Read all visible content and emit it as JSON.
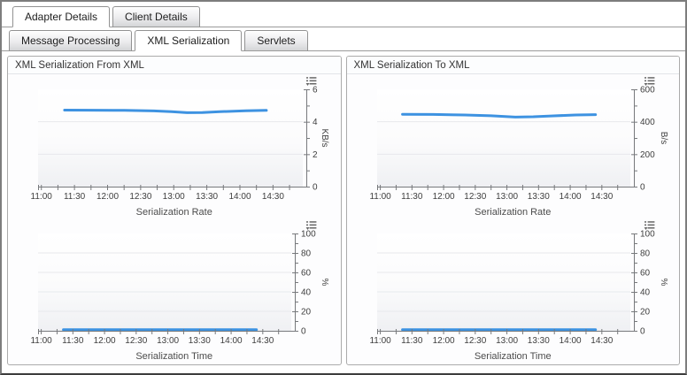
{
  "colors": {
    "series": "#3d92e1",
    "axis": "#77797c",
    "grid": "#e7e9ec"
  },
  "tabs": {
    "primary": [
      {
        "label": "Adapter Details"
      },
      {
        "label": "Client Details"
      }
    ],
    "secondary": [
      {
        "label": "Message Processing"
      },
      {
        "label": "XML Serialization"
      },
      {
        "label": "Servlets"
      }
    ]
  },
  "panels": {
    "left": {
      "title": "XML Serialization From XML"
    },
    "right": {
      "title": "XML Serialization To XML"
    }
  },
  "charts": {
    "from_rate": {
      "type": "line",
      "title": "Serialization Rate",
      "unit": "KB/s",
      "ymax": 6,
      "y_majors": [
        0,
        2,
        4,
        6
      ],
      "x": {
        "start": 657,
        "end": 897,
        "tick_start": 660,
        "tick_step": 15,
        "tick_end": 885,
        "label_start": 660,
        "label_step": 30,
        "labels": [
          "11:00",
          "11:30",
          "12:00",
          "12:30",
          "13:00",
          "13:30",
          "14:00",
          "14:30"
        ]
      },
      "points": [
        [
          681,
          4.72
        ],
        [
          705,
          4.71
        ],
        [
          735,
          4.7
        ],
        [
          762,
          4.67
        ],
        [
          778,
          4.62
        ],
        [
          792,
          4.56
        ],
        [
          806,
          4.57
        ],
        [
          822,
          4.62
        ],
        [
          845,
          4.68
        ],
        [
          864,
          4.7
        ]
      ]
    },
    "from_time": {
      "type": "line",
      "title": "Serialization Time",
      "unit": "%",
      "ymax": 100,
      "y_majors": [
        0,
        20,
        40,
        60,
        80,
        100
      ],
      "x": {
        "start": 657,
        "end": 897,
        "tick_start": 660,
        "tick_step": 15,
        "tick_end": 885,
        "label_start": 660,
        "label_step": 30,
        "labels": [
          "11:00",
          "11:30",
          "12:00",
          "12:30",
          "13:00",
          "13:30",
          "14:00",
          "14:30"
        ]
      },
      "points": [
        [
          681,
          1.2
        ],
        [
          720,
          1.2
        ],
        [
          760,
          1.2
        ],
        [
          800,
          1.2
        ],
        [
          840,
          1.2
        ],
        [
          864,
          1.2
        ]
      ]
    },
    "to_rate": {
      "type": "line",
      "title": "Serialization Rate",
      "unit": "B/s",
      "ymax": 600,
      "y_majors": [
        0,
        200,
        400,
        600
      ],
      "x": {
        "start": 657,
        "end": 897,
        "tick_start": 660,
        "tick_step": 15,
        "tick_end": 885,
        "label_start": 660,
        "label_step": 30,
        "labels": [
          "11:00",
          "11:30",
          "12:00",
          "12:30",
          "13:00",
          "13:30",
          "14:00",
          "14:30"
        ]
      },
      "points": [
        [
          681,
          446
        ],
        [
          710,
          445
        ],
        [
          740,
          442
        ],
        [
          765,
          437
        ],
        [
          788,
          429
        ],
        [
          805,
          431
        ],
        [
          822,
          436
        ],
        [
          845,
          442
        ],
        [
          864,
          444
        ]
      ]
    },
    "to_time": {
      "type": "line",
      "title": "Serialization Time",
      "unit": "%",
      "ymax": 100,
      "y_majors": [
        0,
        20,
        40,
        60,
        80,
        100
      ],
      "x": {
        "start": 657,
        "end": 897,
        "tick_start": 660,
        "tick_step": 15,
        "tick_end": 885,
        "label_start": 660,
        "label_step": 30,
        "labels": [
          "11:00",
          "11:30",
          "12:00",
          "12:30",
          "13:00",
          "13:30",
          "14:00",
          "14:30"
        ]
      },
      "points": [
        [
          681,
          1.2
        ],
        [
          720,
          1.2
        ],
        [
          760,
          1.2
        ],
        [
          800,
          1.2
        ],
        [
          840,
          1.2
        ],
        [
          864,
          1.2
        ]
      ]
    }
  }
}
